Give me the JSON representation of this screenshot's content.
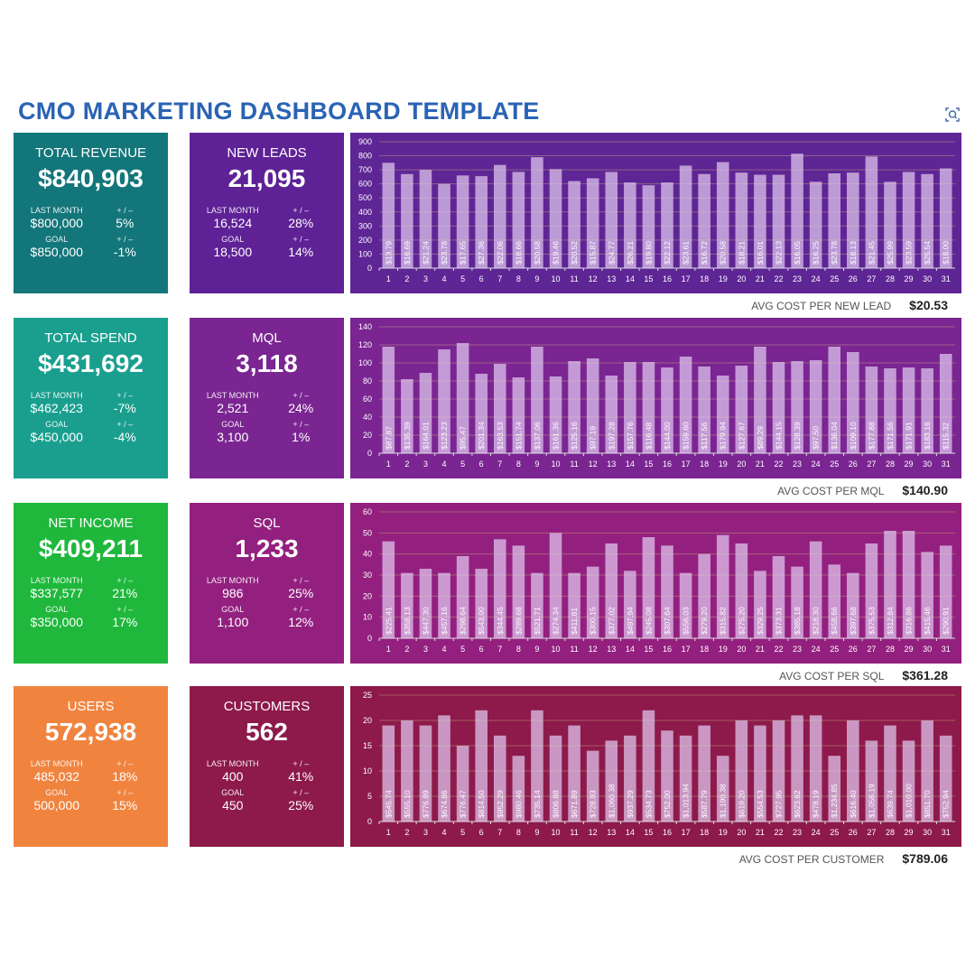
{
  "title": "CMO MARKETING DASHBOARD TEMPLATE",
  "labels": {
    "last_month": "LAST MONTH",
    "goal": "GOAL",
    "plus_minus": "+ / –"
  },
  "rows": [
    {
      "left": {
        "label": "TOTAL REVENUE",
        "value": "$840,903",
        "last_month": "$800,000",
        "last_month_change": "5%",
        "goal": "$850,000",
        "goal_change": "-1%",
        "color": "#13767a"
      },
      "mid": {
        "label": "NEW LEADS",
        "value": "21,095",
        "last_month": "16,524",
        "last_month_change": "28%",
        "goal": "18,500",
        "goal_change": "14%",
        "color": "#5e2196"
      },
      "footer": {
        "label": "AVG COST PER NEW LEAD",
        "value": "$20.53"
      }
    },
    {
      "left": {
        "label": "TOTAL SPEND",
        "value": "$431,692",
        "last_month": "$462,423",
        "last_month_change": "-7%",
        "goal": "$450,000",
        "goal_change": "-4%",
        "color": "#1a9f8f"
      },
      "mid": {
        "label": "MQL",
        "value": "3,118",
        "last_month": "2,521",
        "last_month_change": "24%",
        "goal": "3,100",
        "goal_change": "1%",
        "color": "#7a2592"
      },
      "footer": {
        "label": "AVG COST PER MQL",
        "value": "$140.90"
      }
    },
    {
      "left": {
        "label": "NET INCOME",
        "value": "$409,211",
        "last_month": "$337,577",
        "last_month_change": "21%",
        "goal": "$350,000",
        "goal_change": "17%",
        "color": "#1fb83c"
      },
      "mid": {
        "label": "SQL",
        "value": "1,233",
        "last_month": "986",
        "last_month_change": "25%",
        "goal": "1,100",
        "goal_change": "12%",
        "color": "#93207f"
      },
      "footer": {
        "label": "AVG COST PER SQL",
        "value": "$361.28"
      }
    },
    {
      "left": {
        "label": "USERS",
        "value": "572,938",
        "last_month": "485,032",
        "last_month_change": "18%",
        "goal": "500,000",
        "goal_change": "15%",
        "color": "#f0843f"
      },
      "mid": {
        "label": "CUSTOMERS",
        "value": "562",
        "last_month": "400",
        "last_month_change": "41%",
        "goal": "450",
        "goal_change": "25%",
        "color": "#8d1a4b"
      },
      "footer": {
        "label": "AVG COST PER CUSTOMER",
        "value": "$789.06"
      }
    }
  ],
  "chart_data": [
    {
      "type": "bar",
      "bg": "#5e2595",
      "ylim": [
        0,
        900
      ],
      "yticks": [
        0,
        100,
        200,
        300,
        400,
        500,
        600,
        700,
        800,
        900
      ],
      "categories": [
        1,
        2,
        3,
        4,
        5,
        6,
        7,
        8,
        9,
        10,
        11,
        12,
        13,
        14,
        15,
        16,
        17,
        18,
        19,
        20,
        21,
        22,
        23,
        24,
        25,
        26,
        27,
        28,
        29,
        30,
        31
      ],
      "values": [
        750,
        670,
        700,
        600,
        660,
        655,
        735,
        685,
        790,
        705,
        620,
        640,
        685,
        610,
        590,
        610,
        730,
        670,
        755,
        680,
        665,
        665,
        815,
        615,
        675,
        680,
        795,
        615,
        685,
        670,
        710
      ],
      "data_labels": [
        "$13.79",
        "$16.69",
        "$21.24",
        "$23.78",
        "$17.65",
        "$27.36",
        "$22.06",
        "$18.66",
        "$20.58",
        "$19.46",
        "$20.52",
        "$15.87",
        "$24.77",
        "$26.21",
        "$19.80",
        "$22.12",
        "$23.61",
        "$16.72",
        "$20.58",
        "$18.21",
        "$16.01",
        "$22.13",
        "$16.05",
        "$16.25",
        "$23.78",
        "$18.13",
        "$21.45",
        "$25.99",
        "$23.59",
        "$25.54",
        "$18.00"
      ]
    },
    {
      "type": "bar",
      "bg": "#7a2592",
      "ylim": [
        0,
        140
      ],
      "yticks": [
        0,
        20,
        40,
        60,
        80,
        100,
        120,
        140
      ],
      "categories": [
        1,
        2,
        3,
        4,
        5,
        6,
        7,
        8,
        9,
        10,
        11,
        12,
        13,
        14,
        15,
        16,
        17,
        18,
        19,
        20,
        21,
        22,
        23,
        24,
        25,
        26,
        27,
        28,
        29,
        30,
        31
      ],
      "values": [
        118,
        82,
        89,
        115,
        122,
        88,
        99,
        84,
        118,
        85,
        102,
        105,
        86,
        101,
        101,
        95,
        107,
        96,
        86,
        97,
        118,
        101,
        102,
        103,
        118,
        112,
        96,
        94,
        95,
        94,
        110
      ],
      "data_labels": [
        "$87.87",
        "$135.39",
        "$164.01",
        "$123.23",
        "$95.47",
        "$201.34",
        "$163.53",
        "$151.74",
        "$137.06",
        "$161.36",
        "$125.16",
        "$97.19",
        "$197.28",
        "$157.76",
        "$116.48",
        "$144.00",
        "$159.60",
        "$117.56",
        "$179.94",
        "$127.67",
        "$89.29",
        "$144.15",
        "$128.39",
        "$97.50",
        "$136.04",
        "$109.10",
        "$177.88",
        "$171.56",
        "$171.91",
        "$183.16",
        "$115.32"
      ]
    },
    {
      "type": "bar",
      "bg": "#93207f",
      "ylim": [
        0,
        60
      ],
      "yticks": [
        0,
        10,
        20,
        30,
        40,
        50,
        60
      ],
      "categories": [
        1,
        2,
        3,
        4,
        5,
        6,
        7,
        8,
        9,
        10,
        11,
        12,
        13,
        14,
        15,
        16,
        17,
        18,
        19,
        20,
        21,
        22,
        23,
        24,
        25,
        26,
        27,
        28,
        29,
        30,
        31
      ],
      "values": [
        46,
        31,
        33,
        31,
        39,
        33,
        47,
        44,
        31,
        50,
        31,
        34,
        45,
        32,
        48,
        44,
        31,
        40,
        49,
        45,
        32,
        39,
        34,
        46,
        35,
        31,
        45,
        51,
        51,
        41,
        44
      ],
      "data_labels": [
        "$225.41",
        "$358.13",
        "$447.30",
        "$457.16",
        "$298.64",
        "$543.00",
        "$344.45",
        "$289.68",
        "$521.71",
        "$274.34",
        "$411.81",
        "$300.15",
        "$377.02",
        "$497.94",
        "$245.08",
        "$307.64",
        "$556.03",
        "$279.20",
        "$315.82",
        "$275.20",
        "$329.25",
        "$373.31",
        "$385.18",
        "$218.30",
        "$458.66",
        "$397.68",
        "$375.53",
        "$312.84",
        "$316.86",
        "$415.46",
        "$290.91"
      ]
    },
    {
      "type": "bar",
      "bg": "#8d1a4b",
      "ylim": [
        0,
        25
      ],
      "yticks": [
        0,
        5,
        10,
        15,
        20,
        25
      ],
      "categories": [
        1,
        2,
        3,
        4,
        5,
        6,
        7,
        8,
        9,
        10,
        11,
        12,
        13,
        14,
        15,
        16,
        17,
        18,
        19,
        20,
        21,
        22,
        23,
        24,
        25,
        26,
        27,
        28,
        29,
        30,
        31
      ],
      "values": [
        19,
        20,
        19,
        21,
        15,
        22,
        17,
        13,
        22,
        17,
        19,
        14,
        16,
        17,
        22,
        18,
        17,
        19,
        13,
        20,
        19,
        20,
        21,
        21,
        13,
        20,
        16,
        19,
        16,
        20,
        17
      ],
      "data_labels": [
        "$545.74",
        "$555.10",
        "$776.89",
        "$674.86",
        "$776.47",
        "$814.50",
        "$952.29",
        "$980.46",
        "$735.14",
        "$806.88",
        "$671.89",
        "$728.93",
        "$1,060.38",
        "$937.29",
        "$534.73",
        "$752.00",
        "$1,013.94",
        "$587.79",
        "$1,190.38",
        "$619.20",
        "$554.53",
        "$727.95",
        "$623.62",
        "$478.19",
        "$1,234.85",
        "$616.40",
        "$1,056.19",
        "$639.74",
        "$1,010.00",
        "$851.70",
        "$752.94"
      ]
    }
  ]
}
